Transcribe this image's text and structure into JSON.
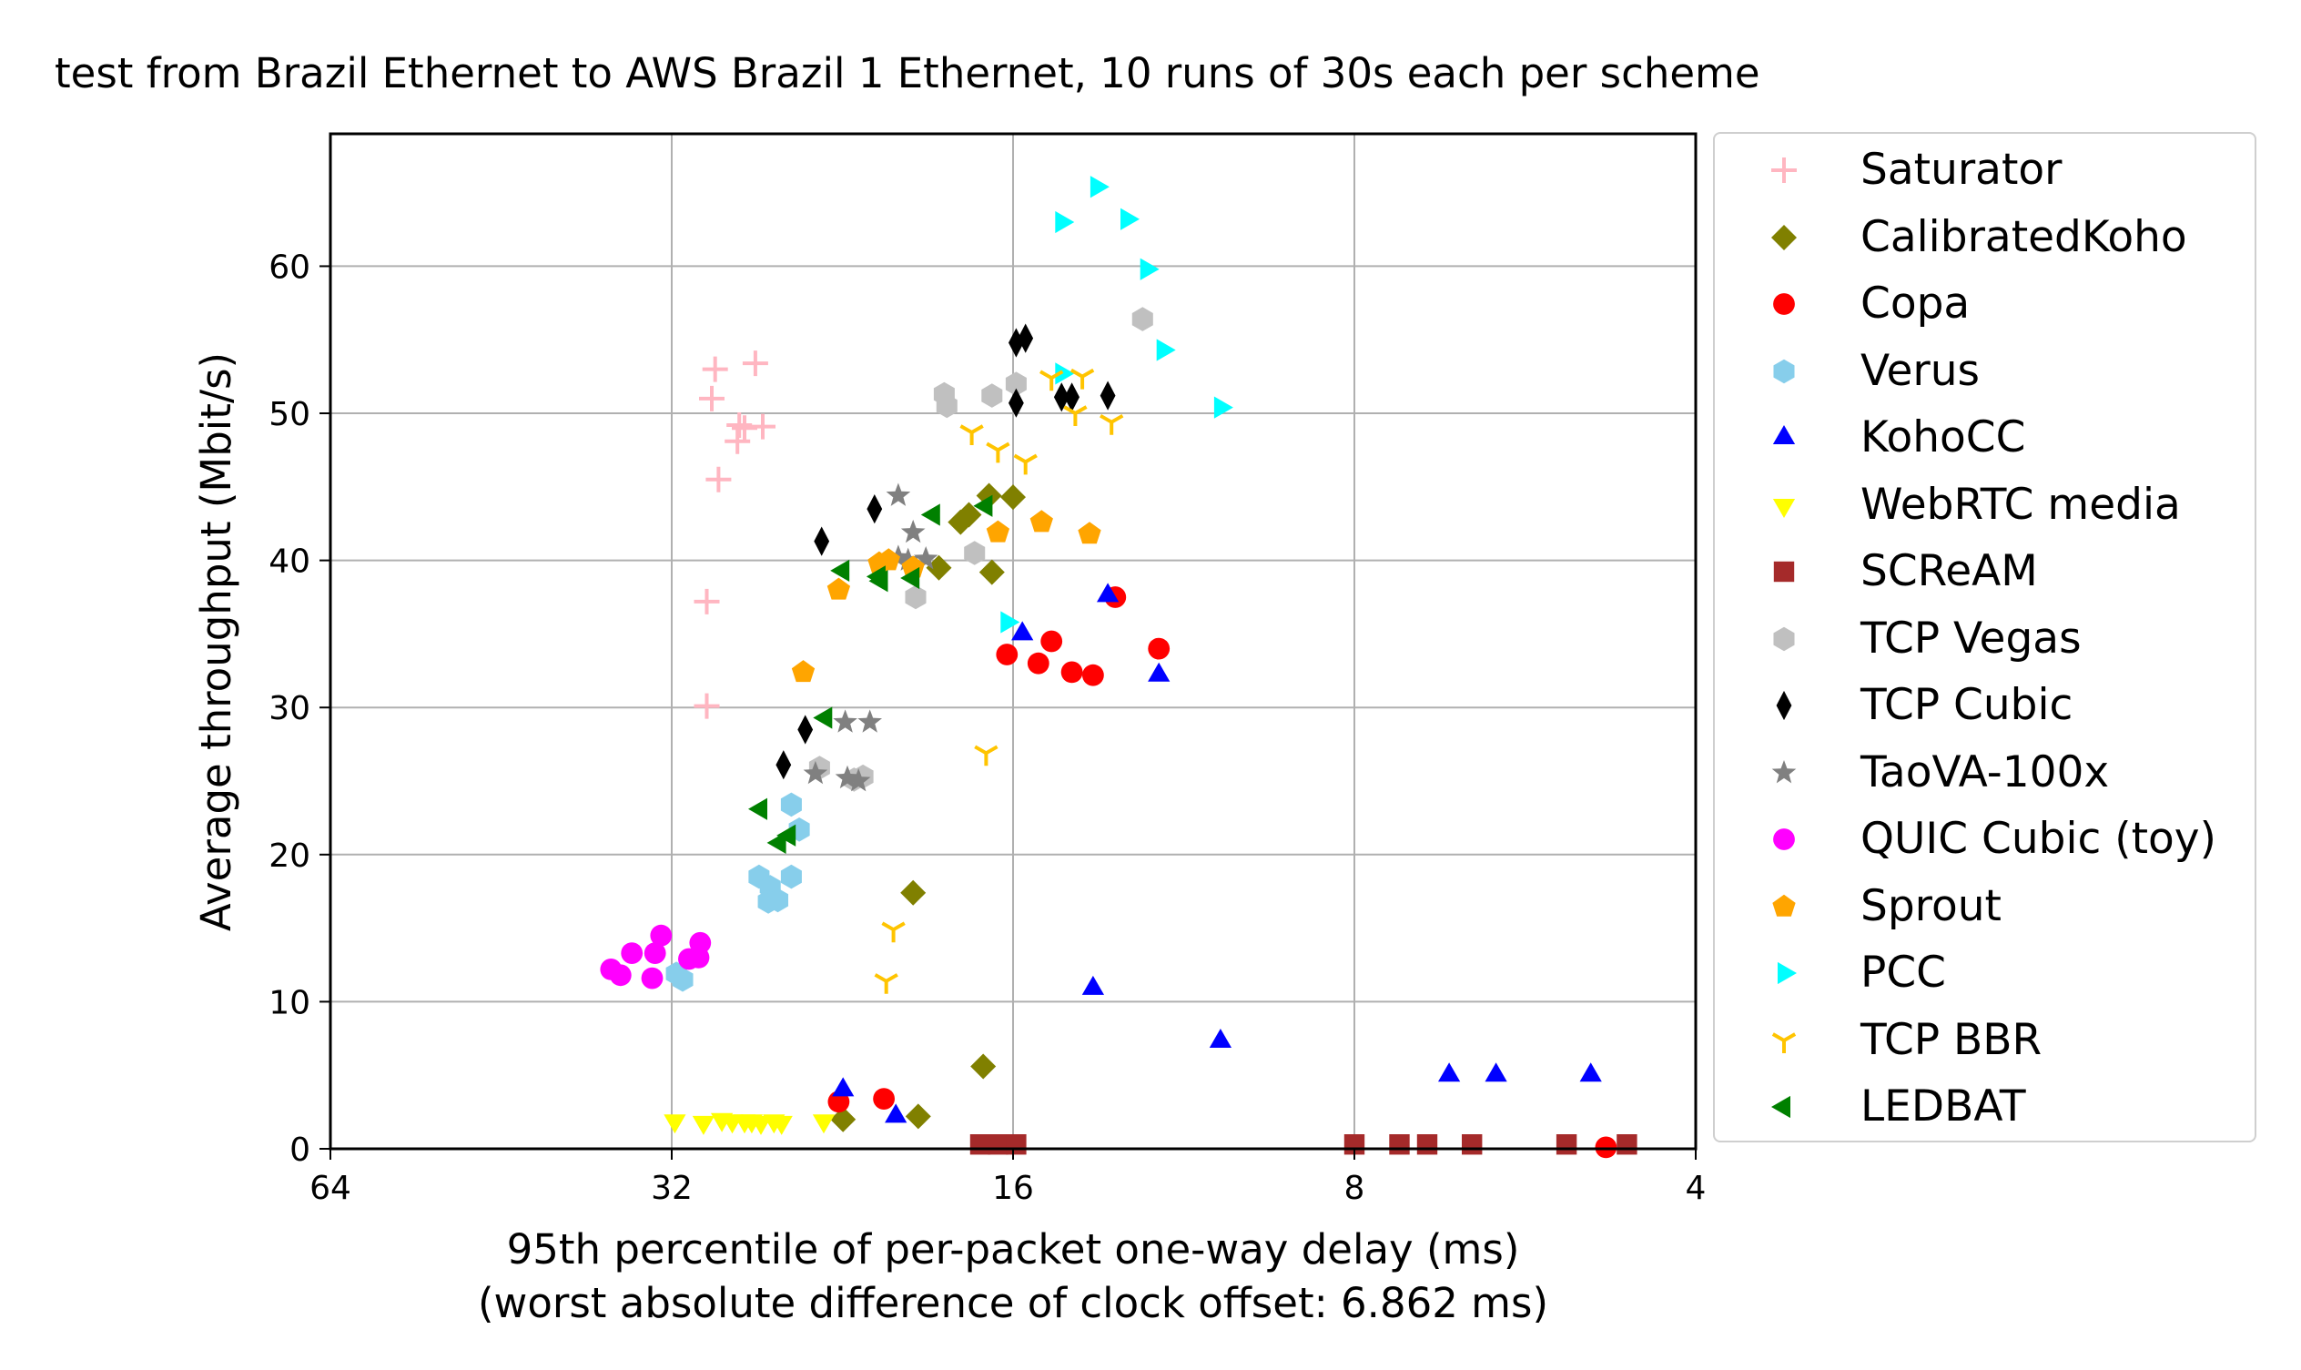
{
  "chart_data": {
    "type": "scatter",
    "title": "test from Brazil Ethernet to AWS Brazil 1 Ethernet, 10 runs of 30s each per scheme",
    "xlabel": "95th percentile of per-packet one-way delay (ms)",
    "xlabel2": "(worst absolute difference of clock offset: 6.862 ms)",
    "ylabel": "Average throughput (Mbit/s)",
    "x_scale": "log2",
    "x_reversed": true,
    "xlim": [
      64,
      4
    ],
    "ylim": [
      0,
      69
    ],
    "xticks": [
      64,
      32,
      16,
      8,
      4
    ],
    "xtick_labels": [
      "64",
      "32",
      "16",
      "8",
      "4"
    ],
    "yticks": [
      0,
      10,
      20,
      30,
      40,
      50,
      60
    ],
    "ytick_labels": [
      "0",
      "10",
      "20",
      "30",
      "40",
      "50",
      "60"
    ],
    "grid": true,
    "legend_position": "outside-right",
    "series": [
      {
        "name": "Saturator",
        "marker": "plus",
        "color": "#ffb6c1",
        "points": [
          [
            29.3,
            53.0
          ],
          [
            27.0,
            53.4
          ],
          [
            29.5,
            51.0
          ],
          [
            27.9,
            49.2
          ],
          [
            27.6,
            49.0
          ],
          [
            26.6,
            49.1
          ],
          [
            28.0,
            48.1
          ],
          [
            29.1,
            45.5
          ],
          [
            29.8,
            37.2
          ],
          [
            29.8,
            30.1
          ]
        ]
      },
      {
        "name": "CalibratedKoho",
        "marker": "diamond",
        "color": "#808000",
        "points": [
          [
            16.8,
            44.4
          ],
          [
            16.0,
            44.3
          ],
          [
            17.5,
            43.1
          ],
          [
            17.8,
            42.6
          ],
          [
            16.7,
            39.2
          ],
          [
            18.6,
            39.5
          ],
          [
            19.6,
            17.4
          ],
          [
            17.0,
            5.6
          ],
          [
            19.4,
            2.2
          ],
          [
            22.6,
            2.0
          ]
        ]
      },
      {
        "name": "Copa",
        "marker": "circle",
        "color": "#ff0000",
        "points": [
          [
            13.0,
            37.5
          ],
          [
            11.9,
            34.0
          ],
          [
            16.2,
            33.6
          ],
          [
            14.8,
            34.5
          ],
          [
            15.2,
            33.0
          ],
          [
            14.2,
            32.4
          ],
          [
            13.6,
            32.2
          ],
          [
            20.8,
            3.4
          ],
          [
            22.8,
            3.2
          ],
          [
            4.8,
            0.1
          ]
        ]
      },
      {
        "name": "Verus",
        "marker": "hexagon",
        "color": "#87ceeb",
        "points": [
          [
            25.1,
            23.4
          ],
          [
            24.7,
            21.7
          ],
          [
            25.1,
            18.5
          ],
          [
            26.8,
            18.5
          ],
          [
            26.2,
            17.8
          ],
          [
            26.3,
            16.8
          ],
          [
            25.8,
            16.9
          ],
          [
            31.7,
            11.9
          ],
          [
            31.3,
            11.5
          ]
        ]
      },
      {
        "name": "KohoCC",
        "marker": "triangle-up",
        "color": "#0000ff",
        "points": [
          [
            13.2,
            37.6
          ],
          [
            15.7,
            35.0
          ],
          [
            11.9,
            32.2
          ],
          [
            13.6,
            10.9
          ],
          [
            10.5,
            7.3
          ],
          [
            6.6,
            5.0
          ],
          [
            6.0,
            5.0
          ],
          [
            4.95,
            5.0
          ],
          [
            22.6,
            4.0
          ],
          [
            20.3,
            2.2
          ]
        ]
      },
      {
        "name": "WebRTC media",
        "marker": "triangle-down",
        "color": "#ffff00",
        "points": [
          [
            31.8,
            1.9
          ],
          [
            30.0,
            1.8
          ],
          [
            28.9,
            2.0
          ],
          [
            28.3,
            1.9
          ],
          [
            27.6,
            1.9
          ],
          [
            27.2,
            1.9
          ],
          [
            26.7,
            1.8
          ],
          [
            26.0,
            1.9
          ],
          [
            25.6,
            1.8
          ],
          [
            23.5,
            1.9
          ]
        ]
      },
      {
        "name": "SCReAM",
        "marker": "square",
        "color": "#a52a2a",
        "points": [
          [
            17.1,
            0.3
          ],
          [
            16.5,
            0.3
          ],
          [
            15.9,
            0.3
          ],
          [
            8.0,
            0.3
          ],
          [
            7.3,
            0.3
          ],
          [
            6.9,
            0.3
          ],
          [
            6.3,
            0.3
          ],
          [
            5.2,
            0.3
          ],
          [
            4.6,
            0.3
          ]
        ]
      },
      {
        "name": "TCP Vegas",
        "marker": "hexagon",
        "color": "#c0c0c0",
        "points": [
          [
            12.3,
            56.4
          ],
          [
            18.4,
            51.3
          ],
          [
            18.3,
            50.5
          ],
          [
            16.7,
            51.2
          ],
          [
            15.9,
            52.0
          ],
          [
            17.3,
            40.5
          ],
          [
            19.5,
            37.5
          ],
          [
            23.7,
            25.9
          ],
          [
            22.1,
            25.1
          ],
          [
            21.7,
            25.3
          ]
        ]
      },
      {
        "name": "TCP Cubic",
        "marker": "thin-diamond",
        "color": "#000000",
        "points": [
          [
            15.9,
            54.8
          ],
          [
            15.6,
            55.1
          ],
          [
            15.9,
            50.7
          ],
          [
            14.5,
            51.1
          ],
          [
            14.2,
            51.1
          ],
          [
            13.2,
            51.2
          ],
          [
            21.2,
            43.5
          ],
          [
            23.6,
            41.3
          ],
          [
            24.4,
            28.5
          ],
          [
            25.5,
            26.1
          ]
        ]
      },
      {
        "name": "TaoVA-100x",
        "marker": "star",
        "color": "#808080",
        "points": [
          [
            20.2,
            44.4
          ],
          [
            19.6,
            41.9
          ],
          [
            20.2,
            40.2
          ],
          [
            19.1,
            40.1
          ],
          [
            22.5,
            29.0
          ],
          [
            21.4,
            29.0
          ],
          [
            23.9,
            25.5
          ],
          [
            22.4,
            25.2
          ],
          [
            21.9,
            25.0
          ],
          [
            19.8,
            40.0
          ]
        ]
      },
      {
        "name": "QUIC Cubic (toy)",
        "marker": "circle",
        "color": "#ff00ff",
        "points": [
          [
            32.7,
            14.5
          ],
          [
            30.2,
            14.0
          ],
          [
            33.1,
            13.3
          ],
          [
            34.7,
            13.3
          ],
          [
            30.9,
            12.9
          ],
          [
            30.3,
            13.0
          ],
          [
            36.2,
            12.2
          ],
          [
            35.5,
            11.8
          ],
          [
            33.3,
            11.6
          ]
        ]
      },
      {
        "name": "Sprout",
        "marker": "pentagon",
        "color": "#ffa500",
        "points": [
          [
            15.1,
            42.6
          ],
          [
            16.5,
            41.9
          ],
          [
            13.7,
            41.8
          ],
          [
            20.6,
            40.0
          ],
          [
            21.0,
            39.8
          ],
          [
            19.6,
            39.5
          ],
          [
            22.8,
            38.0
          ],
          [
            24.5,
            32.4
          ]
        ]
      },
      {
        "name": "PCC",
        "marker": "triangle-right",
        "color": "#00ffff",
        "points": [
          [
            13.5,
            65.4
          ],
          [
            12.7,
            63.2
          ],
          [
            14.5,
            63.0
          ],
          [
            12.2,
            59.8
          ],
          [
            11.8,
            54.3
          ],
          [
            14.5,
            52.7
          ],
          [
            10.5,
            50.4
          ],
          [
            16.2,
            35.8
          ]
        ]
      },
      {
        "name": "TCP BBR",
        "marker": "tri-down",
        "color": "#ffc400",
        "points": [
          [
            14.8,
            52.4
          ],
          [
            13.9,
            52.5
          ],
          [
            14.1,
            50.0
          ],
          [
            13.1,
            49.4
          ],
          [
            17.4,
            48.7
          ],
          [
            16.5,
            47.5
          ],
          [
            15.6,
            46.7
          ],
          [
            16.9,
            26.9
          ],
          [
            20.4,
            14.9
          ],
          [
            20.7,
            11.4
          ]
        ]
      },
      {
        "name": "LEDBAT",
        "marker": "triangle-left",
        "color": "#008000",
        "points": [
          [
            16.9,
            43.7
          ],
          [
            18.8,
            43.1
          ],
          [
            22.6,
            39.3
          ],
          [
            20.9,
            38.6
          ],
          [
            19.6,
            38.8
          ],
          [
            23.4,
            29.3
          ],
          [
            26.7,
            23.1
          ],
          [
            25.7,
            20.8
          ],
          [
            25.2,
            21.3
          ],
          [
            21.0,
            38.9
          ]
        ]
      }
    ]
  }
}
